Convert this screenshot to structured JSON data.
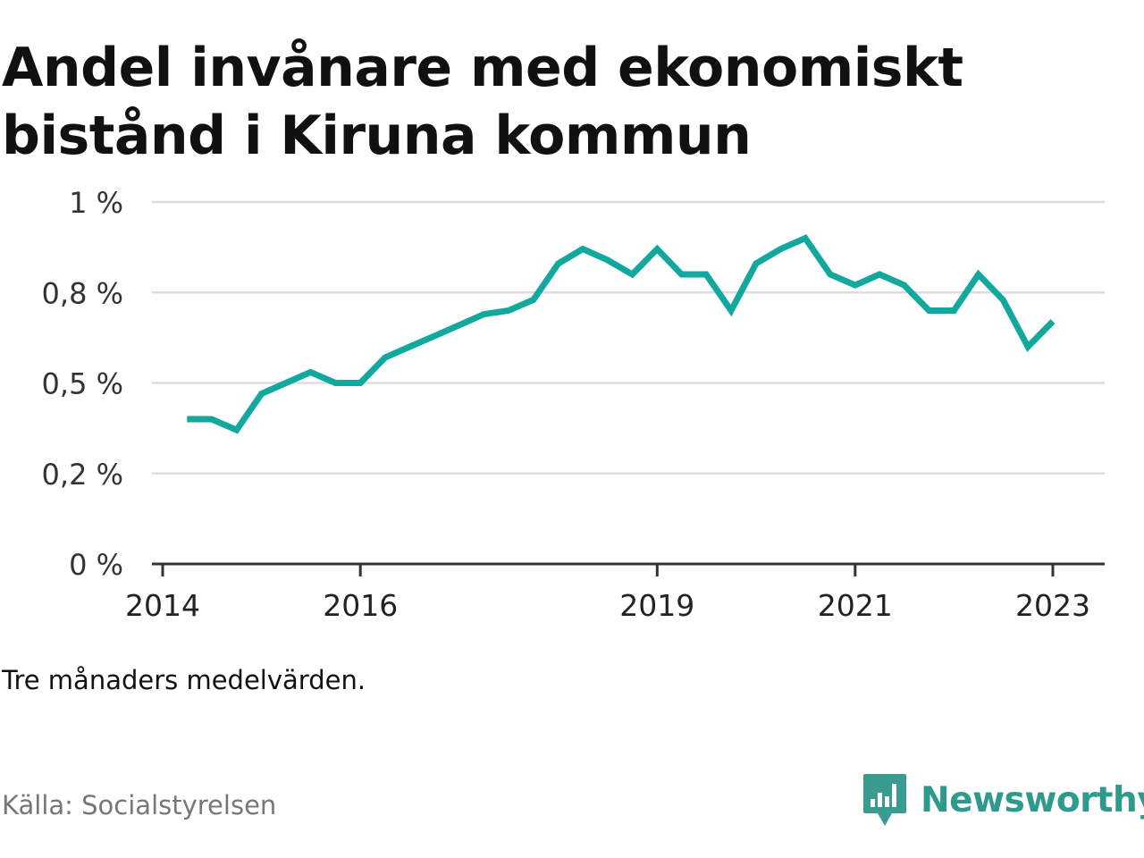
{
  "title": "Andel invånare med ekonomiskt bistånd i Kiruna kommun",
  "note": "Tre månaders medelvärden.",
  "source": "Källa: Socialstyrelsen",
  "brand": {
    "name": "Newsworthy",
    "icon": "newsworthy-logo-icon",
    "color": "#2e9a8e"
  },
  "colors": {
    "line": "#13a89e",
    "grid": "#dddddd",
    "axis": "#333333"
  },
  "chart_data": {
    "type": "line",
    "title": "Andel invånare med ekonomiskt bistånd i Kiruna kommun",
    "xlabel": "",
    "ylabel": "",
    "grid": true,
    "legend": "none",
    "ylim": [
      0,
      1
    ],
    "xlim": [
      "2014-01-01",
      "2023-12-31"
    ],
    "y_ticks": [
      {
        "value": 0,
        "label": "0 %"
      },
      {
        "value": 0.25,
        "label": "0,2 %"
      },
      {
        "value": 0.5,
        "label": "0,5 %"
      },
      {
        "value": 0.75,
        "label": "0,8 %"
      },
      {
        "value": 1,
        "label": "1 %"
      }
    ],
    "x_ticks": [
      {
        "value": "2014-01-01",
        "label": "2014"
      },
      {
        "value": "2016-01-01",
        "label": "2016"
      },
      {
        "value": "2019-01-01",
        "label": "2019"
      },
      {
        "value": "2021-01-01",
        "label": "2021"
      },
      {
        "value": "2023-01-01",
        "label": "2023"
      }
    ],
    "series": [
      {
        "x": [
          "2014-04-01",
          "2014-07-01",
          "2014-10-01",
          "2015-01-01",
          "2015-04-01",
          "2015-07-01",
          "2015-10-01",
          "2016-01-01",
          "2016-04-01",
          "2016-07-01",
          "2016-10-01",
          "2017-01-01",
          "2017-04-01",
          "2017-07-01",
          "2017-10-01",
          "2018-01-01",
          "2018-04-01",
          "2018-07-01",
          "2018-10-01",
          "2019-01-01",
          "2019-04-01",
          "2019-07-01",
          "2019-10-01",
          "2020-01-01",
          "2020-04-01",
          "2020-07-01",
          "2020-10-01",
          "2021-01-01",
          "2021-04-01",
          "2021-07-01",
          "2021-10-01",
          "2022-01-01",
          "2022-04-01",
          "2022-07-01",
          "2022-10-01",
          "2023-01-01"
        ],
        "y": [
          0.4,
          0.4,
          0.37,
          0.47,
          0.5,
          0.53,
          0.5,
          0.5,
          0.57,
          0.6,
          0.63,
          0.66,
          0.69,
          0.7,
          0.73,
          0.83,
          0.87,
          0.84,
          0.8,
          0.87,
          0.8,
          0.8,
          0.7,
          0.83,
          0.87,
          0.9,
          0.8,
          0.77,
          0.8,
          0.77,
          0.7,
          0.7,
          0.8,
          0.73,
          0.6,
          0.67
        ]
      }
    ]
  }
}
